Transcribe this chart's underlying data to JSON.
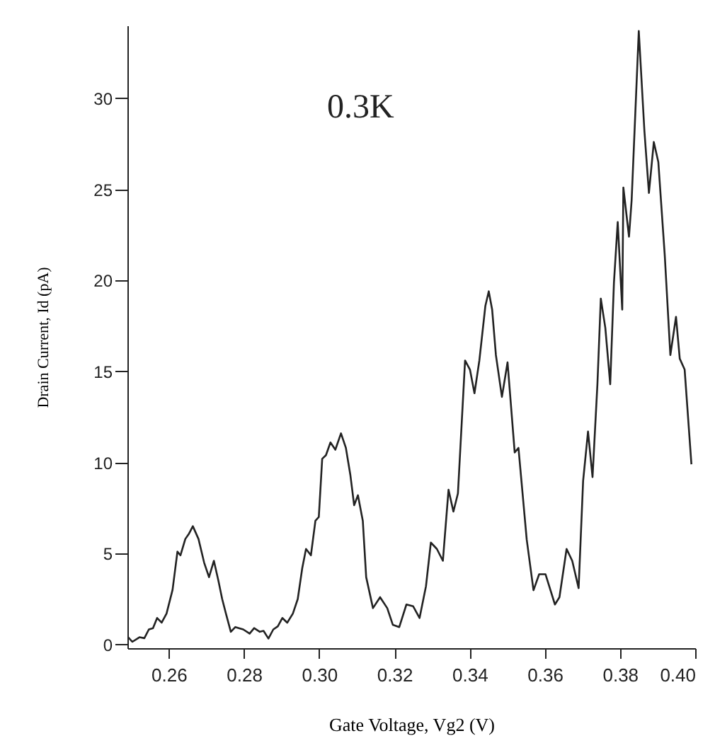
{
  "chart_data": {
    "type": "line",
    "xlabel": "Gate Voltage, Vg2 (V)",
    "ylabel": "Drain Current, Id (pA)",
    "annotations": [
      "0.3K"
    ],
    "xlim": [
      0.249,
      0.4
    ],
    "xticks": [
      {
        "value": 0.26,
        "label": "0.26"
      },
      {
        "value": 0.28,
        "label": "0.28"
      },
      {
        "value": 0.3,
        "label": "0.30"
      },
      {
        "value": 0.32,
        "label": "0.32"
      },
      {
        "value": 0.34,
        "label": "0.34"
      },
      {
        "value": 0.36,
        "label": "0.36"
      },
      {
        "value": 0.38,
        "label": "0.38"
      },
      {
        "value": 0.4,
        "label": "0.40"
      }
    ],
    "ylim": [
      -0.2,
      34
    ],
    "yticks": [
      0,
      5,
      10,
      15,
      20,
      25,
      30
    ],
    "grid": false,
    "marker": "none",
    "line_style": "solid",
    "series": [
      {
        "color": "#222222",
        "x": [
          0.249,
          0.2503,
          0.2522,
          0.2535,
          0.2547,
          0.2558,
          0.2569,
          0.2581,
          0.2594,
          0.261,
          0.2623,
          0.2631,
          0.2644,
          0.2654,
          0.2664,
          0.2679,
          0.2694,
          0.2707,
          0.272,
          0.2732,
          0.2742,
          0.2752,
          0.2765,
          0.2777,
          0.2798,
          0.2815,
          0.2827,
          0.2842,
          0.2852,
          0.2865,
          0.2878,
          0.289,
          0.2902,
          0.2915,
          0.293,
          0.2943,
          0.2955,
          0.2965,
          0.2978,
          0.299,
          0.2999,
          0.3008,
          0.3018,
          0.303,
          0.3043,
          0.3058,
          0.3071,
          0.3083,
          0.3093,
          0.3103,
          0.3116,
          0.3125,
          0.3143,
          0.3162,
          0.3181,
          0.3196,
          0.3213,
          0.3232,
          0.325,
          0.3267,
          0.3284,
          0.3297,
          0.3313,
          0.3329,
          0.3344,
          0.3357,
          0.3369,
          0.3388,
          0.3401,
          0.3413,
          0.3426,
          0.3442,
          0.3451,
          0.346,
          0.347,
          0.3486,
          0.3501,
          0.352,
          0.353,
          0.3552,
          0.357,
          0.3585,
          0.3602,
          0.3627,
          0.3639,
          0.3658,
          0.3673,
          0.369,
          0.3702,
          0.3715,
          0.3727,
          0.374,
          0.3749,
          0.3761,
          0.3774,
          0.3784,
          0.3794,
          0.3806,
          0.3809,
          0.3824,
          0.3831,
          0.385,
          0.3865,
          0.3877,
          0.389,
          0.3902,
          0.3919,
          0.3934,
          0.3949,
          0.3959,
          0.3972,
          0.399
        ],
        "values": [
          0.45,
          0.15,
          0.4,
          0.35,
          0.83,
          0.9,
          1.46,
          1.2,
          1.7,
          3.0,
          5.1,
          4.9,
          5.8,
          6.1,
          6.5,
          5.8,
          4.5,
          3.7,
          4.6,
          3.5,
          2.5,
          1.7,
          0.7,
          0.96,
          0.83,
          0.6,
          0.9,
          0.7,
          0.75,
          0.33,
          0.83,
          1.0,
          1.46,
          1.2,
          1.7,
          2.5,
          4.2,
          5.25,
          4.9,
          6.8,
          7.0,
          10.2,
          10.4,
          11.1,
          10.7,
          11.6,
          10.8,
          9.3,
          7.65,
          8.2,
          6.8,
          3.7,
          2.0,
          2.6,
          2.0,
          1.08,
          0.96,
          2.2,
          2.1,
          1.46,
          3.2,
          5.6,
          5.25,
          4.6,
          8.5,
          7.3,
          8.3,
          15.6,
          15.1,
          13.8,
          15.6,
          18.6,
          19.4,
          18.4,
          15.9,
          13.6,
          15.5,
          10.55,
          10.8,
          5.76,
          2.98,
          3.86,
          3.86,
          2.2,
          2.6,
          5.25,
          4.6,
          3.1,
          9.0,
          11.7,
          9.2,
          14.3,
          19.0,
          17.4,
          14.3,
          19.9,
          23.2,
          18.4,
          25.1,
          22.4,
          24.4,
          33.7,
          28.2,
          24.8,
          27.6,
          26.5,
          21.4,
          15.9,
          18.0,
          15.7,
          15.1,
          9.9
        ]
      }
    ]
  }
}
